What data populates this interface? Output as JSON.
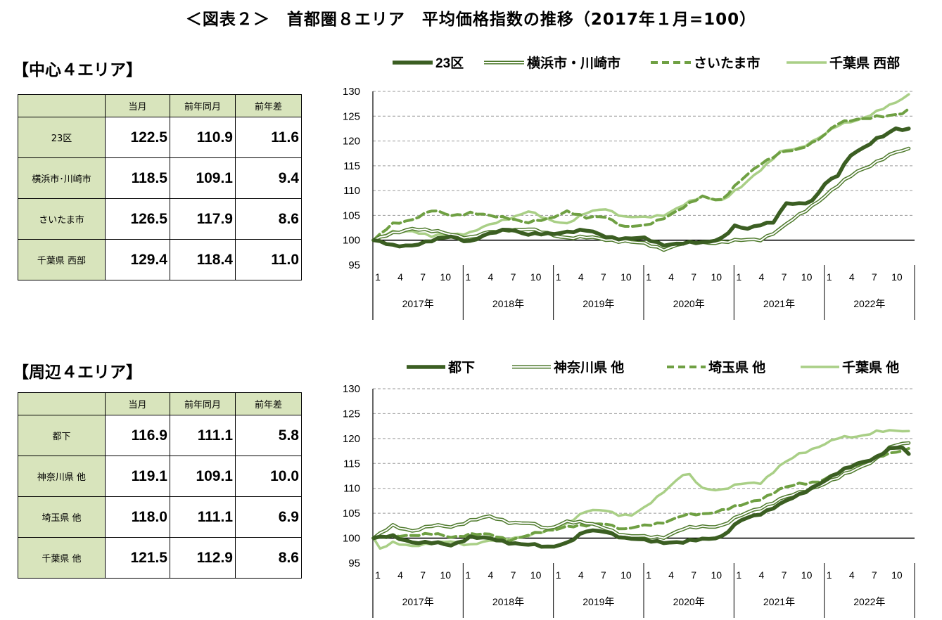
{
  "title": "＜図表２＞　首都圏８エリア　平均価格指数の推移（2017年１月=100）",
  "sections": [
    {
      "heading": "【中心４エリア】",
      "table": {
        "headers": [
          "",
          "当月",
          "前年同月",
          "前年差"
        ],
        "rows": [
          {
            "label": "23区",
            "current": "122.5",
            "prev": "110.9",
            "diff": "11.6"
          },
          {
            "label": "横浜市･川崎市",
            "current": "118.5",
            "prev": "109.1",
            "diff": "9.4"
          },
          {
            "label": "さいたま市",
            "current": "126.5",
            "prev": "117.9",
            "diff": "8.6"
          },
          {
            "label": "千葉県 西部",
            "current": "129.4",
            "prev": "118.4",
            "diff": "11.0"
          }
        ]
      }
    },
    {
      "heading": "【周辺４エリア】",
      "table": {
        "headers": [
          "",
          "当月",
          "前年同月",
          "前年差"
        ],
        "rows": [
          {
            "label": "都下",
            "current": "116.9",
            "prev": "111.1",
            "diff": "5.8"
          },
          {
            "label": "神奈川県 他",
            "current": "119.1",
            "prev": "109.1",
            "diff": "10.0"
          },
          {
            "label": "埼玉県 他",
            "current": "118.0",
            "prev": "111.1",
            "diff": "6.9"
          },
          {
            "label": "千葉県 他",
            "current": "121.5",
            "prev": "112.9",
            "diff": "8.6"
          }
        ]
      }
    }
  ],
  "colors": {
    "dark": "#3b5e22",
    "double": "#4e7a2c",
    "dashed": "#6fa043",
    "light": "#a9cf86",
    "header_bg": "#d8e4bc"
  },
  "chart_data": [
    {
      "type": "line",
      "ylim": [
        95,
        130
      ],
      "yticks": [
        95,
        100,
        105,
        110,
        115,
        120,
        125,
        130
      ],
      "month_ticks": [
        "1",
        "4",
        "7",
        "10"
      ],
      "years": [
        "2017年",
        "2018年",
        "2019年",
        "2020年",
        "2021年",
        "2022年"
      ],
      "legend": [
        "23区",
        "横浜市・川崎市",
        "さいたま市",
        "千葉県 西部"
      ],
      "series": [
        {
          "name": "23区",
          "style": "dark",
          "anchors": [
            [
              0,
              100
            ],
            [
              3,
              98.8
            ],
            [
              6,
              99.1
            ],
            [
              9,
              99.8
            ],
            [
              12,
              100.8
            ],
            [
              15,
              99.8
            ],
            [
              18,
              101.2
            ],
            [
              21,
              102.4
            ],
            [
              24,
              101.1
            ],
            [
              27,
              101.2
            ],
            [
              30,
              101.8
            ],
            [
              33,
              101.9
            ],
            [
              36,
              100.8
            ],
            [
              39,
              100.3
            ],
            [
              42,
              100.3
            ],
            [
              45,
              99.2
            ],
            [
              48,
              99.3
            ],
            [
              51,
              99.5
            ],
            [
              54,
              100.5
            ],
            [
              56,
              102.7
            ],
            [
              58,
              102.2
            ],
            [
              60,
              103.3
            ],
            [
              62,
              103.8
            ],
            [
              64,
              107.3
            ],
            [
              66,
              107.2
            ],
            [
              68,
              108.0
            ],
            [
              70,
              111.5
            ],
            [
              72,
              113.0
            ],
            [
              74,
              117.1
            ],
            [
              76,
              118.8
            ],
            [
              78,
              120.5
            ],
            [
              80,
              121.5
            ],
            [
              81,
              122.4
            ],
            [
              82,
              122.2
            ],
            [
              83,
              122.5
            ]
          ]
        },
        {
          "name": "横浜市・川崎市",
          "style": "double",
          "anchors": [
            [
              0,
              100
            ],
            [
              3,
              101.3
            ],
            [
              6,
              102.5
            ],
            [
              9,
              101.8
            ],
            [
              12,
              101.2
            ],
            [
              15,
              100.6
            ],
            [
              18,
              101.5
            ],
            [
              21,
              102.2
            ],
            [
              24,
              102.2
            ],
            [
              27,
              101.3
            ],
            [
              30,
              100.6
            ],
            [
              33,
              100.5
            ],
            [
              36,
              100.2
            ],
            [
              39,
              99.8
            ],
            [
              42,
              99.2
            ],
            [
              45,
              98.3
            ],
            [
              48,
              99.3
            ],
            [
              51,
              99.5
            ],
            [
              54,
              99.7
            ],
            [
              57,
              99.9
            ],
            [
              60,
              100.2
            ],
            [
              63,
              102.2
            ],
            [
              66,
              105.0
            ],
            [
              69,
              108.0
            ],
            [
              72,
              110.9
            ],
            [
              75,
              113.9
            ],
            [
              78,
              115.8
            ],
            [
              81,
              117.6
            ],
            [
              83,
              118.5
            ]
          ]
        },
        {
          "name": "さいたま市",
          "style": "dashed",
          "anchors": [
            [
              0,
              100
            ],
            [
              3,
              103.2
            ],
            [
              6,
              104.3
            ],
            [
              9,
              105.9
            ],
            [
              12,
              105.0
            ],
            [
              15,
              105.6
            ],
            [
              18,
              104.8
            ],
            [
              21,
              104.6
            ],
            [
              24,
              103.5
            ],
            [
              27,
              104.2
            ],
            [
              30,
              106.0
            ],
            [
              33,
              104.4
            ],
            [
              36,
              104.8
            ],
            [
              39,
              102.7
            ],
            [
              42,
              102.8
            ],
            [
              45,
              104.6
            ],
            [
              48,
              106.5
            ],
            [
              51,
              108.8
            ],
            [
              54,
              108.2
            ],
            [
              57,
              112.0
            ],
            [
              60,
              115.5
            ],
            [
              63,
              117.6
            ],
            [
              66,
              118.2
            ],
            [
              69,
              120.5
            ],
            [
              72,
              123.4
            ],
            [
              75,
              124.4
            ],
            [
              78,
              125.0
            ],
            [
              80,
              124.9
            ],
            [
              82,
              125.5
            ],
            [
              83,
              126.5
            ]
          ]
        },
        {
          "name": "千葉県 西部",
          "style": "light",
          "anchors": [
            [
              0,
              100
            ],
            [
              3,
              101.6
            ],
            [
              6,
              102.0
            ],
            [
              9,
              100.7
            ],
            [
              12,
              101.2
            ],
            [
              15,
              101.6
            ],
            [
              18,
              103.0
            ],
            [
              21,
              104.5
            ],
            [
              24,
              105.8
            ],
            [
              27,
              104.1
            ],
            [
              30,
              103.5
            ],
            [
              33,
              105.4
            ],
            [
              36,
              106.4
            ],
            [
              39,
              104.7
            ],
            [
              42,
              104.5
            ],
            [
              45,
              105.2
            ],
            [
              48,
              107.0
            ],
            [
              51,
              108.8
            ],
            [
              54,
              108.1
            ],
            [
              57,
              110.6
            ],
            [
              60,
              114.3
            ],
            [
              63,
              117.8
            ],
            [
              66,
              118.4
            ],
            [
              69,
              120.8
            ],
            [
              72,
              123.0
            ],
            [
              75,
              124.2
            ],
            [
              78,
              126.0
            ],
            [
              81,
              127.6
            ],
            [
              83,
              129.4
            ]
          ]
        }
      ]
    },
    {
      "type": "line",
      "ylim": [
        95,
        130
      ],
      "yticks": [
        95,
        100,
        105,
        110,
        115,
        120,
        125,
        130
      ],
      "month_ticks": [
        "1",
        "4",
        "7",
        "10"
      ],
      "years": [
        "2017年",
        "2018年",
        "2019年",
        "2020年",
        "2021年",
        "2022年"
      ],
      "legend": [
        "都下",
        "神奈川県 他",
        "埼玉県 他",
        "千葉県 他"
      ],
      "series": [
        {
          "name": "都下",
          "style": "dark",
          "anchors": [
            [
              0,
              100
            ],
            [
              3,
              100.3
            ],
            [
              6,
              99.3
            ],
            [
              9,
              99.0
            ],
            [
              12,
              98.6
            ],
            [
              15,
              100.3
            ],
            [
              18,
              99.8
            ],
            [
              21,
              99.2
            ],
            [
              24,
              98.7
            ],
            [
              27,
              98.1
            ],
            [
              30,
              99.2
            ],
            [
              33,
              101.3
            ],
            [
              36,
              101.4
            ],
            [
              39,
              100.0
            ],
            [
              42,
              99.5
            ],
            [
              45,
              99.3
            ],
            [
              48,
              99.1
            ],
            [
              51,
              99.8
            ],
            [
              54,
              100.4
            ],
            [
              57,
              103.5
            ],
            [
              60,
              105.0
            ],
            [
              63,
              106.8
            ],
            [
              66,
              108.6
            ],
            [
              69,
              111.0
            ],
            [
              72,
              113.0
            ],
            [
              75,
              115.0
            ],
            [
              78,
              116.3
            ],
            [
              80,
              117.8
            ],
            [
              82,
              118.2
            ],
            [
              83,
              116.9
            ]
          ]
        },
        {
          "name": "神奈川県 他",
          "style": "double",
          "anchors": [
            [
              0,
              100
            ],
            [
              3,
              102.4
            ],
            [
              6,
              101.6
            ],
            [
              9,
              102.4
            ],
            [
              12,
              102.3
            ],
            [
              15,
              103.6
            ],
            [
              18,
              104.2
            ],
            [
              21,
              103.3
            ],
            [
              24,
              103.0
            ],
            [
              27,
              101.8
            ],
            [
              30,
              103.5
            ],
            [
              33,
              102.9
            ],
            [
              36,
              102.1
            ],
            [
              39,
              100.5
            ],
            [
              42,
              100.2
            ],
            [
              45,
              100.3
            ],
            [
              48,
              101.8
            ],
            [
              51,
              102.3
            ],
            [
              54,
              102.6
            ],
            [
              57,
              104.5
            ],
            [
              60,
              106.2
            ],
            [
              63,
              107.8
            ],
            [
              66,
              109.0
            ],
            [
              69,
              110.6
            ],
            [
              72,
              112.0
            ],
            [
              75,
              114.0
            ],
            [
              78,
              116.0
            ],
            [
              80,
              118.0
            ],
            [
              82,
              119.0
            ],
            [
              83,
              119.1
            ]
          ]
        },
        {
          "name": "埼玉県 他",
          "style": "dashed",
          "anchors": [
            [
              0,
              100
            ],
            [
              3,
              100.4
            ],
            [
              6,
              100.7
            ],
            [
              9,
              100.8
            ],
            [
              12,
              100.2
            ],
            [
              15,
              100.9
            ],
            [
              18,
              100.6
            ],
            [
              21,
              99.7
            ],
            [
              24,
              100.6
            ],
            [
              27,
              101.4
            ],
            [
              30,
              102.5
            ],
            [
              33,
              102.4
            ],
            [
              36,
              103.0
            ],
            [
              39,
              101.8
            ],
            [
              42,
              102.4
            ],
            [
              45,
              103.3
            ],
            [
              48,
              104.5
            ],
            [
              51,
              104.8
            ],
            [
              54,
              105.7
            ],
            [
              57,
              106.5
            ],
            [
              60,
              107.9
            ],
            [
              63,
              109.8
            ],
            [
              66,
              110.8
            ],
            [
              69,
              111.5
            ],
            [
              72,
              113.0
            ],
            [
              75,
              114.7
            ],
            [
              78,
              116.3
            ],
            [
              81,
              117.1
            ],
            [
              83,
              118.0
            ]
          ]
        },
        {
          "name": "千葉県 他",
          "style": "light",
          "anchors": [
            [
              0,
              100
            ],
            [
              1,
              97.7
            ],
            [
              3,
              99.0
            ],
            [
              6,
              98.6
            ],
            [
              9,
              98.8
            ],
            [
              12,
              99.4
            ],
            [
              15,
              98.7
            ],
            [
              18,
              99.3
            ],
            [
              21,
              100.1
            ],
            [
              24,
              100.4
            ],
            [
              27,
              101.4
            ],
            [
              30,
              103.1
            ],
            [
              33,
              105.3
            ],
            [
              36,
              105.7
            ],
            [
              38,
              104.8
            ],
            [
              40,
              104.5
            ],
            [
              42,
              106.0
            ],
            [
              45,
              109.5
            ],
            [
              48,
              112.7
            ],
            [
              49,
              112.5
            ],
            [
              51,
              110.0
            ],
            [
              54,
              109.8
            ],
            [
              57,
              110.8
            ],
            [
              60,
              111.2
            ],
            [
              63,
              114.5
            ],
            [
              66,
              116.8
            ],
            [
              69,
              118.5
            ],
            [
              72,
              120.0
            ],
            [
              75,
              120.4
            ],
            [
              78,
              121.5
            ],
            [
              80,
              121.4
            ],
            [
              83,
              121.5
            ]
          ]
        }
      ]
    }
  ]
}
